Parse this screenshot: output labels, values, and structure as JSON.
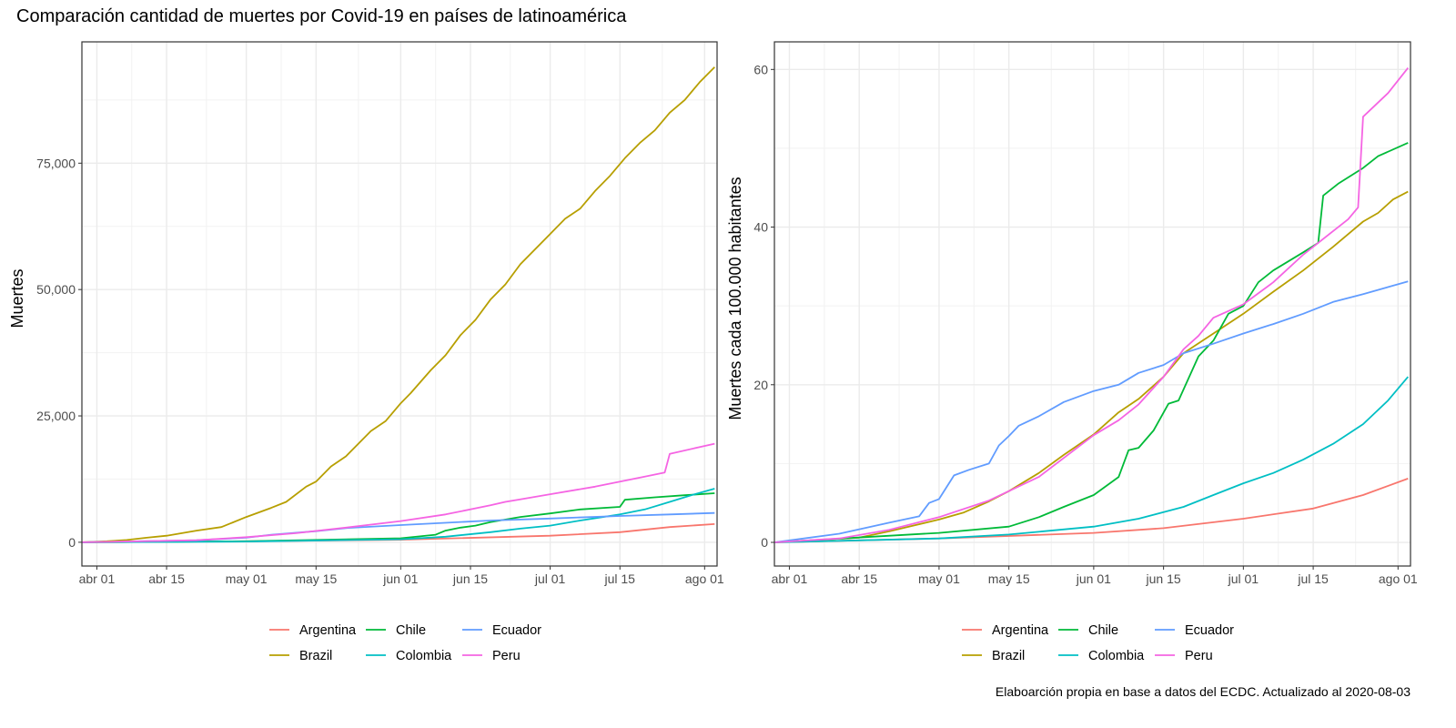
{
  "title": "Comparación cantidad de muertes por Covid-19 en países de latinoamérica",
  "caption": "Elaboarción propia en base a datos del ECDC.  Actualizado al  2020-08-03",
  "countries": [
    {
      "name": "Argentina",
      "color": "#F8766D"
    },
    {
      "name": "Brazil",
      "color": "#B79F00"
    },
    {
      "name": "Chile",
      "color": "#00BA38"
    },
    {
      "name": "Colombia",
      "color": "#00BFC4"
    },
    {
      "name": "Ecuador",
      "color": "#619CFF"
    },
    {
      "name": "Peru",
      "color": "#F564E3"
    }
  ],
  "chart_data": [
    {
      "type": "line",
      "ylabel": "Muertes",
      "xlabel": "",
      "x_ticks": [
        {
          "label": "abr 01",
          "day": 0
        },
        {
          "label": "abr 15",
          "day": 14
        },
        {
          "label": "may 01",
          "day": 30
        },
        {
          "label": "may 15",
          "day": 44
        },
        {
          "label": "jun 01",
          "day": 61
        },
        {
          "label": "jun 15",
          "day": 75
        },
        {
          "label": "jul 01",
          "day": 91
        },
        {
          "label": "jul 15",
          "day": 105
        },
        {
          "label": "ago 01",
          "day": 122
        }
      ],
      "y_ticks": [
        {
          "label": "0",
          "value": 0
        },
        {
          "label": "25,000",
          "value": 25000
        },
        {
          "label": "50,000",
          "value": 50000
        },
        {
          "label": "75,000",
          "value": 75000
        }
      ],
      "xlim": [
        -3,
        124.5
      ],
      "ylim": [
        -4700,
        99000
      ],
      "series": [
        {
          "name": "Argentina",
          "points": [
            [
              -3,
              0
            ],
            [
              30,
              200
            ],
            [
              61,
              500
            ],
            [
              91,
              1300
            ],
            [
              105,
              2000
            ],
            [
              115,
              3000
            ],
            [
              124,
              3600
            ]
          ]
        },
        {
          "name": "Brazil",
          "points": [
            [
              -3,
              0
            ],
            [
              2,
              200
            ],
            [
              6,
              450
            ],
            [
              10,
              900
            ],
            [
              14,
              1300
            ],
            [
              20,
              2300
            ],
            [
              25,
              3000
            ],
            [
              30,
              5000
            ],
            [
              35,
              6800
            ],
            [
              38,
              8000
            ],
            [
              42,
              11000
            ],
            [
              44,
              12000
            ],
            [
              47,
              15000
            ],
            [
              50,
              17000
            ],
            [
              55,
              22000
            ],
            [
              58,
              24000
            ],
            [
              61,
              27500
            ],
            [
              63,
              29500
            ],
            [
              67,
              34000
            ],
            [
              70,
              37000
            ],
            [
              73,
              41000
            ],
            [
              76,
              44000
            ],
            [
              79,
              48000
            ],
            [
              82,
              51000
            ],
            [
              85,
              55000
            ],
            [
              88,
              58000
            ],
            [
              91,
              61000
            ],
            [
              94,
              64000
            ],
            [
              97,
              66000
            ],
            [
              100,
              69500
            ],
            [
              103,
              72500
            ],
            [
              106,
              76000
            ],
            [
              109,
              79000
            ],
            [
              112,
              81500
            ],
            [
              115,
              85000
            ],
            [
              118,
              87500
            ],
            [
              121,
              91000
            ],
            [
              124,
              94000
            ]
          ]
        },
        {
          "name": "Chile",
          "points": [
            [
              -3,
              0
            ],
            [
              30,
              200
            ],
            [
              61,
              800
            ],
            [
              68,
              1500
            ],
            [
              70,
              2300
            ],
            [
              73,
              2900
            ],
            [
              76,
              3300
            ],
            [
              79,
              4000
            ],
            [
              85,
              5000
            ],
            [
              91,
              5700
            ],
            [
              97,
              6500
            ],
            [
              105,
              7000
            ],
            [
              106,
              8400
            ],
            [
              112,
              8900
            ],
            [
              118,
              9300
            ],
            [
              124,
              9700
            ]
          ]
        },
        {
          "name": "Colombia",
          "points": [
            [
              -3,
              0
            ],
            [
              30,
              150
            ],
            [
              61,
              600
            ],
            [
              70,
              1100
            ],
            [
              79,
              2000
            ],
            [
              85,
              2700
            ],
            [
              91,
              3300
            ],
            [
              97,
              4300
            ],
            [
              105,
              5500
            ],
            [
              110,
              6500
            ],
            [
              115,
              8000
            ],
            [
              120,
              9500
            ],
            [
              124,
              10600
            ]
          ]
        },
        {
          "name": "Ecuador",
          "points": [
            [
              -3,
              0
            ],
            [
              20,
              400
            ],
            [
              30,
              900
            ],
            [
              35,
              1500
            ],
            [
              44,
              2200
            ],
            [
              50,
              2800
            ],
            [
              61,
              3400
            ],
            [
              79,
              4300
            ],
            [
              91,
              4700
            ],
            [
              105,
              5200
            ],
            [
              115,
              5500
            ],
            [
              124,
              5800
            ]
          ]
        },
        {
          "name": "Peru",
          "points": [
            [
              -3,
              0
            ],
            [
              20,
              400
            ],
            [
              30,
              1000
            ],
            [
              40,
              1800
            ],
            [
              50,
              2900
            ],
            [
              61,
              4200
            ],
            [
              70,
              5500
            ],
            [
              79,
              7300
            ],
            [
              82,
              8000
            ],
            [
              85,
              8500
            ],
            [
              91,
              9500
            ],
            [
              100,
              11000
            ],
            [
              110,
              13000
            ],
            [
              114,
              13800
            ],
            [
              115,
              17500
            ],
            [
              124,
              19500
            ]
          ]
        }
      ]
    },
    {
      "type": "line",
      "ylabel": "Muertes cada 100.000 habitantes",
      "xlabel": "",
      "x_ticks": [
        {
          "label": "abr 01",
          "day": 0
        },
        {
          "label": "abr 15",
          "day": 14
        },
        {
          "label": "may 01",
          "day": 30
        },
        {
          "label": "may 15",
          "day": 44
        },
        {
          "label": "jun 01",
          "day": 61
        },
        {
          "label": "jun 15",
          "day": 75
        },
        {
          "label": "jul 01",
          "day": 91
        },
        {
          "label": "jul 15",
          "day": 105
        },
        {
          "label": "ago 01",
          "day": 122
        }
      ],
      "y_ticks": [
        {
          "label": "0",
          "value": 0
        },
        {
          "label": "20",
          "value": 20
        },
        {
          "label": "40",
          "value": 40
        },
        {
          "label": "60",
          "value": 60
        }
      ],
      "xlim": [
        -3,
        124.5
      ],
      "ylim": [
        -3,
        63.5
      ],
      "series": [
        {
          "name": "Argentina",
          "points": [
            [
              -3,
              0
            ],
            [
              30,
              0.5
            ],
            [
              61,
              1.2
            ],
            [
              75,
              1.8
            ],
            [
              91,
              3
            ],
            [
              105,
              4.3
            ],
            [
              115,
              6
            ],
            [
              124,
              8.1
            ]
          ]
        },
        {
          "name": "Brazil",
          "points": [
            [
              -3,
              0
            ],
            [
              14,
              0.6
            ],
            [
              20,
              1.4
            ],
            [
              30,
              2.9
            ],
            [
              35,
              3.8
            ],
            [
              40,
              5.2
            ],
            [
              44,
              6.5
            ],
            [
              50,
              8.8
            ],
            [
              55,
              11.1
            ],
            [
              61,
              13.7
            ],
            [
              66,
              16.5
            ],
            [
              70,
              18.2
            ],
            [
              75,
              21
            ],
            [
              79,
              24
            ],
            [
              85,
              26.5
            ],
            [
              91,
              29
            ],
            [
              97,
              31.8
            ],
            [
              103,
              34.5
            ],
            [
              109,
              37.5
            ],
            [
              115,
              40.7
            ],
            [
              118,
              41.8
            ],
            [
              121,
              43.5
            ],
            [
              124,
              44.5
            ]
          ]
        },
        {
          "name": "Chile",
          "points": [
            [
              -3,
              0
            ],
            [
              30,
              1.2
            ],
            [
              44,
              2
            ],
            [
              50,
              3.2
            ],
            [
              55,
              4.5
            ],
            [
              61,
              6
            ],
            [
              66,
              8.3
            ],
            [
              68,
              11.7
            ],
            [
              70,
              12
            ],
            [
              73,
              14.2
            ],
            [
              76,
              17.6
            ],
            [
              78,
              18
            ],
            [
              82,
              23.6
            ],
            [
              85,
              25.6
            ],
            [
              88,
              29
            ],
            [
              91,
              30
            ],
            [
              94,
              33
            ],
            [
              97,
              34.5
            ],
            [
              103,
              36.8
            ],
            [
              106,
              38
            ],
            [
              107,
              44
            ],
            [
              110,
              45.5
            ],
            [
              115,
              47.5
            ],
            [
              118,
              49
            ],
            [
              124,
              50.7
            ]
          ]
        },
        {
          "name": "Colombia",
          "points": [
            [
              -3,
              0
            ],
            [
              30,
              0.5
            ],
            [
              44,
              1
            ],
            [
              61,
              2
            ],
            [
              70,
              3
            ],
            [
              79,
              4.5
            ],
            [
              85,
              6
            ],
            [
              91,
              7.5
            ],
            [
              97,
              8.8
            ],
            [
              103,
              10.5
            ],
            [
              109,
              12.5
            ],
            [
              115,
              15
            ],
            [
              120,
              18
            ],
            [
              124,
              21
            ]
          ]
        },
        {
          "name": "Ecuador",
          "points": [
            [
              -3,
              0
            ],
            [
              10,
              1.1
            ],
            [
              20,
              2.5
            ],
            [
              26,
              3.3
            ],
            [
              28,
              5
            ],
            [
              30,
              5.5
            ],
            [
              33,
              8.5
            ],
            [
              36,
              9.2
            ],
            [
              40,
              10
            ],
            [
              42,
              12.3
            ],
            [
              44,
              13.5
            ],
            [
              46,
              14.8
            ],
            [
              50,
              16
            ],
            [
              55,
              17.8
            ],
            [
              61,
              19.2
            ],
            [
              66,
              20
            ],
            [
              70,
              21.5
            ],
            [
              75,
              22.5
            ],
            [
              79,
              24
            ],
            [
              85,
              25.2
            ],
            [
              91,
              26.5
            ],
            [
              97,
              27.7
            ],
            [
              103,
              29
            ],
            [
              109,
              30.5
            ],
            [
              115,
              31.5
            ],
            [
              124,
              33.1
            ]
          ]
        },
        {
          "name": "Peru",
          "points": [
            [
              -3,
              0
            ],
            [
              10,
              0.5
            ],
            [
              20,
              1.6
            ],
            [
              30,
              3.2
            ],
            [
              40,
              5.3
            ],
            [
              50,
              8.3
            ],
            [
              61,
              13.6
            ],
            [
              66,
              15.5
            ],
            [
              70,
              17.5
            ],
            [
              75,
              21
            ],
            [
              79,
              24.5
            ],
            [
              82,
              26.2
            ],
            [
              85,
              28.5
            ],
            [
              91,
              30.2
            ],
            [
              97,
              33
            ],
            [
              103,
              36.5
            ],
            [
              109,
              39.5
            ],
            [
              112,
              41
            ],
            [
              114,
              42.5
            ],
            [
              115,
              54
            ],
            [
              120,
              57
            ],
            [
              124,
              60.2
            ]
          ]
        }
      ]
    }
  ]
}
